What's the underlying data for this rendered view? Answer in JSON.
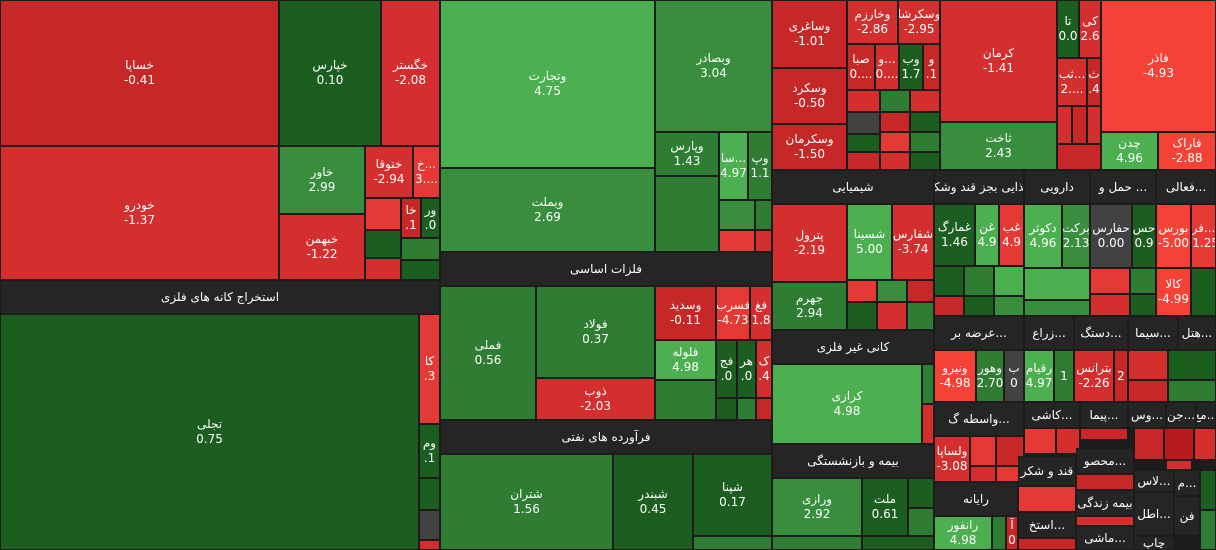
{
  "colors": {
    "dark_red": "#b71c1c",
    "red": "#d32f2f",
    "bright_red": "#f44336",
    "dark_green": "#1b5e20",
    "green": "#2e7d32",
    "mid_green": "#388e3c",
    "bright_green": "#4caf50",
    "gray": "#424242",
    "header_bg": "#252525"
  },
  "sectors": {
    "metal_mining": "استخراج کانه های فلزی",
    "basic_metals": "فلزات اساسی",
    "petroleum": "فرآورده های نفتی",
    "chemical": "شیمیایی",
    "food": "غذایی بجز قند وشکر",
    "pharma": "دارویی",
    "transport": "حمل و ...",
    "activity": "فعالی...",
    "nonmetal_mining": "کانی غیر فلزی",
    "supply": "عرضه بر...",
    "agri": "زراع...",
    "device": "دستگ...",
    "cement": "سیما...",
    "hotel": "هتل...",
    "insurance": "بیمه و بازنشستگی",
    "intermediary": "واسطه گ...",
    "tile": "کاشی...",
    "cement2": "پیما...",
    "sub1": "جن...",
    "sub2": "وس...",
    "sub3": "مع...",
    "computer": "رایانه",
    "sugar": "قند و شکر",
    "product": "محصو...",
    "life_ins": "بیمه زندگی",
    "ext": "استخ...",
    "machine": "ماشی...",
    "lasti": "لاس...",
    "ata": "اطل...",
    "fon": "فن",
    "chap": "چاپ",
    "m1": "م..."
  },
  "tiles": {
    "khsapa": {
      "name": "خساپا",
      "value": "-0.41"
    },
    "khodro": {
      "name": "خودرو",
      "value": "-1.37"
    },
    "kharis": {
      "name": "خپارس",
      "value": "0.10"
    },
    "khgostar": {
      "name": "خگستر",
      "value": "-2.08"
    },
    "khavar": {
      "name": "خاور",
      "value": "2.99"
    },
    "khtoga": {
      "name": "ختوقا",
      "value": "-2.94"
    },
    "khsmall": {
      "name": "خ...",
      "value": "3...."
    },
    "khbahman": {
      "name": "خبهمن",
      "value": "-1.22"
    },
    "kh2": {
      "name": "خا",
      "value": ".1"
    },
    "vr": {
      "name": "ور",
      "value": ".0"
    },
    "tajli": {
      "name": "تجلی",
      "value": "0.75"
    },
    "ka": {
      "name": "کا",
      "value": ".3"
    },
    "vm": {
      "name": "وم",
      "value": ".1"
    },
    "vtejarat": {
      "name": "وتجارت",
      "value": "4.75"
    },
    "vbsader": {
      "name": "وبصادر",
      "value": "3.04"
    },
    "vbmellat": {
      "name": "وبملت",
      "value": "2.69"
    },
    "vpars": {
      "name": "وپارس",
      "value": "1.43"
    },
    "sa": {
      "name": "سا...",
      "value": "4.97"
    },
    "vp": {
      "name": "وپ",
      "value": "1.1"
    },
    "fameli": {
      "name": "فملی",
      "value": "0.56"
    },
    "foolad": {
      "name": "فولاد",
      "value": "0.37"
    },
    "vsadid": {
      "name": "وسدید",
      "value": "-0.11"
    },
    "fasreb": {
      "name": "فسرب",
      "value": "-4.73"
    },
    "fagh": {
      "name": "فغ",
      "value": "1.8"
    },
    "flooleh": {
      "name": "فلوله",
      "value": "4.98"
    },
    "zob": {
      "name": "ذوب",
      "value": "-2.03"
    },
    "fj": {
      "name": "فج",
      "value": ".0"
    },
    "har": {
      "name": "هر",
      "value": ".0"
    },
    "k": {
      "name": "ک",
      "value": ".4"
    },
    "shatran": {
      "name": "شتران",
      "value": "1.56"
    },
    "shbandar": {
      "name": "شبندر",
      "value": "0.45"
    },
    "shpna": {
      "name": "شپنا",
      "value": "0.17"
    },
    "vsaghari": {
      "name": "وساغری",
      "value": "-1.01"
    },
    "vkharazm": {
      "name": "وخارزم",
      "value": "-2.86"
    },
    "vskarsha": {
      "name": "وسکرشا",
      "value": "-2.95"
    },
    "saba": {
      "name": "صبا",
      "value": "0...."
    },
    "vo": {
      "name": "و...",
      "value": "0...."
    },
    "vb": {
      "name": "وب",
      "value": "1.7"
    },
    "v": {
      "name": "و",
      "value": ".1"
    },
    "vskord": {
      "name": "وسکرد",
      "value": "-0.50"
    },
    "vskarman": {
      "name": "وسکرمان",
      "value": "-1.50"
    },
    "kerman": {
      "name": "کرمان",
      "value": "-1.41"
    },
    "ta": {
      "name": "تا",
      "value": "0.0"
    },
    "ki": {
      "name": "کی",
      "value": "2.6"
    },
    "teb": {
      "name": "ثب...",
      "value": "2...."
    },
    "th": {
      "name": "ث",
      "value": ".4"
    },
    "fazar": {
      "name": "فاذر",
      "value": "-4.93"
    },
    "sakht": {
      "name": "ثاخت",
      "value": "2.43"
    },
    "chadan": {
      "name": "چدن",
      "value": "4.96"
    },
    "farak": {
      "name": "فاراک",
      "value": "-2.88"
    },
    "petrol": {
      "name": "پترول",
      "value": "-2.19"
    },
    "shsina": {
      "name": "شسینا",
      "value": "5.00"
    },
    "shfars": {
      "name": "شفارس",
      "value": "-3.74"
    },
    "jahrom": {
      "name": "جهرم",
      "value": "2.94"
    },
    "ghomarg": {
      "name": "غمارگ",
      "value": "1.46"
    },
    "ghen": {
      "name": "غن",
      "value": "4.9"
    },
    "ghab": {
      "name": "غب",
      "value": "4.9"
    },
    "dkosar": {
      "name": "دکوثر",
      "value": "4.96"
    },
    "barkat": {
      "name": "برکت",
      "value": "2.13"
    },
    "hafars": {
      "name": "حفارس",
      "value": "0.00"
    },
    "has": {
      "name": "حس",
      "value": "0.9"
    },
    "bours": {
      "name": "بورس",
      "value": "-5.00"
    },
    "fara": {
      "name": "فر...",
      "value": "-1.25"
    },
    "kala": {
      "name": "کالا",
      "value": "-4.99"
    },
    "kerazi": {
      "name": "کرازی",
      "value": "4.98"
    },
    "vnayro": {
      "name": "ونیرو",
      "value": "-4.98"
    },
    "vhor": {
      "name": "وهور",
      "value": "2.70"
    },
    "b": {
      "name": "ب",
      "value": "0"
    },
    "raghim": {
      "name": "رقیام",
      "value": "4.97"
    },
    "r1": {
      "name": "",
      "value": "1"
    },
    "betrans": {
      "name": "بترانس",
      "value": "-2.26"
    },
    "r2": {
      "name": "",
      "value": "2"
    },
    "vrazi": {
      "name": "ورازی",
      "value": "2.92"
    },
    "mellat": {
      "name": "ملت",
      "value": "0.61"
    },
    "vlsapa": {
      "name": "ولساپا",
      "value": "-3.08"
    },
    "ranfor": {
      "name": "رانفور",
      "value": "4.98"
    },
    "a": {
      "name": "آ",
      "value": "0"
    }
  }
}
